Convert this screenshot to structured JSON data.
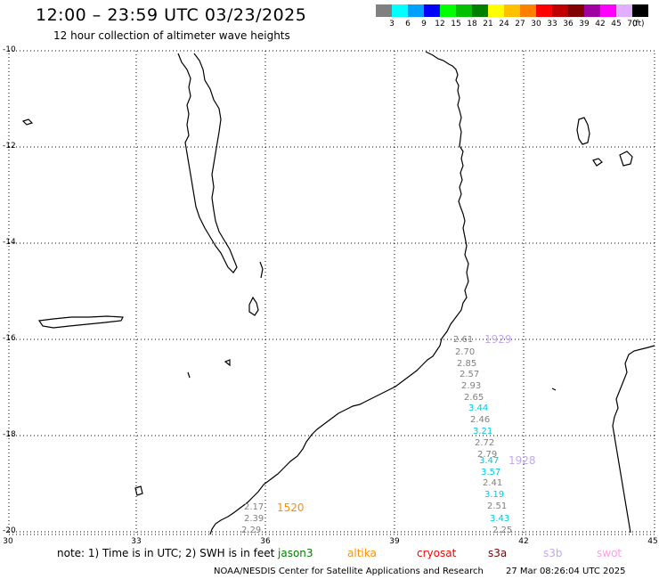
{
  "header": {
    "title": "12:00 – 23:59 UTC 03/23/2025",
    "subtitle": "12 hour collection of altimeter wave heights"
  },
  "legend": {
    "colors": [
      "#808080",
      "#00ffff",
      "#00a0ff",
      "#0000ff",
      "#00ff00",
      "#00c000",
      "#008000",
      "#ffff00",
      "#ffc000",
      "#ff8000",
      "#ff0000",
      "#c00000",
      "#800000",
      "#a000a0",
      "#ff00ff",
      "#e0b0ff",
      "#000000"
    ],
    "labels": [
      "3",
      "6",
      "9",
      "12",
      "15",
      "18",
      "21",
      "24",
      "27",
      "30",
      "33",
      "36",
      "39",
      "42",
      "45",
      "70"
    ],
    "unit": "(ft)"
  },
  "axes": {
    "lat_labels": [
      "-10",
      "-12",
      "-14",
      "-16",
      "-18",
      "-20"
    ],
    "lon_labels": [
      "30",
      "33",
      "36",
      "39",
      "42",
      "45"
    ]
  },
  "observations": {
    "north_track": [
      {
        "value": "2.61",
        "color": "#808080"
      },
      {
        "value": "2.70",
        "color": "#808080"
      },
      {
        "value": "2.85",
        "color": "#808080"
      },
      {
        "value": "2.57",
        "color": "#808080"
      },
      {
        "value": "2.93",
        "color": "#808080"
      },
      {
        "value": "2.65",
        "color": "#808080"
      },
      {
        "value": "3.44",
        "color": "#00c8e0"
      },
      {
        "value": "2.46",
        "color": "#808080"
      },
      {
        "value": "3.21",
        "color": "#00c8e0"
      },
      {
        "value": "2.72",
        "color": "#808080"
      },
      {
        "value": "2.79",
        "color": "#808080"
      },
      {
        "value": "3.47",
        "color": "#00c8e0"
      },
      {
        "value": "3.57",
        "color": "#00c8e0"
      },
      {
        "value": "2.41",
        "color": "#808080"
      },
      {
        "value": "3.19",
        "color": "#00c8e0"
      },
      {
        "value": "2.51",
        "color": "#808080"
      },
      {
        "value": "3.43",
        "color": "#00c8e0"
      },
      {
        "value": "2.25",
        "color": "#808080"
      }
    ],
    "south_track": [
      {
        "value": "2.17",
        "color": "#808080"
      },
      {
        "value": "2.39",
        "color": "#808080"
      },
      {
        "value": "2.29",
        "color": "#808080"
      }
    ],
    "pass_times": [
      {
        "value": "1929",
        "color": "#c0a8f0"
      },
      {
        "value": "1928",
        "color": "#c0a8f0"
      },
      {
        "value": "1520",
        "color": "#ff9000"
      }
    ]
  },
  "note": "note: 1) Time is in UTC; 2) SWH is in feet",
  "satellites": [
    {
      "name": "jason3",
      "color": "#008000"
    },
    {
      "name": "altika",
      "color": "#ff9000"
    },
    {
      "name": "cryosat",
      "color": "#ff0000"
    },
    {
      "name": "s3a",
      "color": "#800000"
    },
    {
      "name": "s3b",
      "color": "#c0a8f0"
    },
    {
      "name": "swot",
      "color": "#ff9ee0"
    }
  ],
  "footer": {
    "source": "NOAA/NESDIS Center for Satellite Applications and Research",
    "generated": "27 Mar 08:26:04 UTC 2025"
  }
}
